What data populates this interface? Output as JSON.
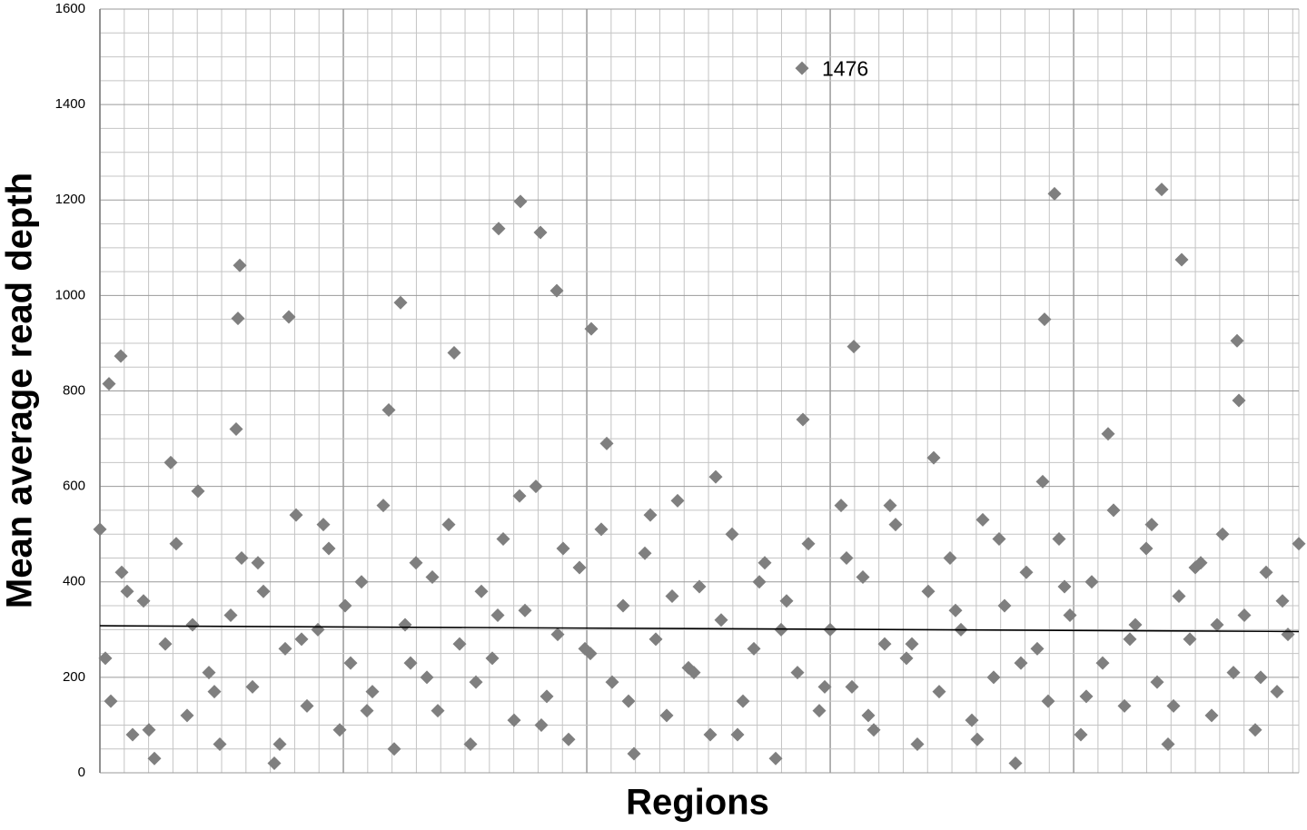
{
  "chart_data": {
    "type": "scatter",
    "y_label": "Mean average read depth",
    "x_label": "Regions",
    "ylim": [
      0,
      1600
    ],
    "yticks": [
      0,
      200,
      400,
      600,
      800,
      1000,
      1200,
      1400,
      1600
    ],
    "xlim": [
      0,
      1320
    ],
    "grid": true,
    "color": "#7f7f7f",
    "x": [
      0,
      12,
      24,
      36,
      48,
      60,
      72,
      84,
      96,
      108,
      120,
      132,
      144,
      156,
      168,
      180,
      192,
      204,
      216,
      228,
      240,
      252,
      264,
      276,
      288,
      300,
      312,
      324,
      336,
      348,
      360,
      372,
      384,
      396,
      408,
      420,
      432,
      444,
      456,
      468,
      480,
      492,
      504,
      516,
      528,
      540,
      552,
      564,
      576,
      588,
      600,
      612,
      624,
      636,
      648,
      660,
      672,
      684,
      696,
      708,
      720,
      732,
      744,
      756,
      768,
      780,
      792,
      804,
      816,
      828,
      840,
      852,
      864,
      876,
      888,
      900,
      912,
      924,
      936,
      948,
      960,
      972,
      984,
      996,
      1008,
      1020,
      1032,
      1044,
      1056,
      1068,
      1080,
      1092,
      1104,
      1116,
      1128,
      1140,
      1152,
      1164,
      1176,
      1188,
      1200,
      1212,
      1224,
      1236,
      1248,
      1260,
      1272,
      1284,
      1296,
      1308,
      1320,
      6,
      30,
      54,
      78,
      102,
      126,
      150,
      174,
      198,
      222,
      246,
      270,
      294,
      318,
      342,
      366,
      390,
      414,
      438,
      462,
      486,
      510,
      534,
      558,
      582,
      606,
      630,
      654,
      678,
      702,
      726,
      750,
      774,
      798,
      822,
      846,
      870,
      894,
      918,
      942,
      966,
      990,
      1014,
      1038,
      1062,
      1086,
      1110,
      1134,
      1158,
      1182,
      1206,
      1230,
      1254,
      1278,
      1302,
      154,
      439,
      463,
      485,
      503,
      331,
      1051,
      1169,
      1191,
      1040,
      152,
      208,
      1252,
      830,
      541,
      23,
      10
    ],
    "values": [
      510,
      150,
      420,
      80,
      360,
      30,
      270,
      480,
      120,
      590,
      210,
      60,
      330,
      450,
      180,
      380,
      20,
      260,
      540,
      140,
      300,
      470,
      90,
      230,
      400,
      170,
      560,
      50,
      310,
      440,
      200,
      130,
      520,
      270,
      60,
      380,
      240,
      490,
      110,
      340,
      600,
      160,
      290,
      70,
      430,
      250,
      510,
      190,
      350,
      40,
      460,
      280,
      120,
      570,
      220,
      390,
      80,
      320,
      500,
      150,
      260,
      440,
      30,
      360,
      210,
      480,
      130,
      300,
      560,
      180,
      410,
      90,
      270,
      520,
      240,
      60,
      380,
      170,
      450,
      300,
      110,
      530,
      200,
      350,
      20,
      420,
      260,
      150,
      490,
      330,
      80,
      400,
      230,
      550,
      140,
      310,
      470,
      190,
      60,
      370,
      280,
      440,
      120,
      500,
      210,
      330,
      90,
      420,
      170,
      290,
      480,
      240,
      380,
      90,
      650,
      310,
      170,
      720,
      440,
      60,
      280,
      520,
      350,
      130,
      760,
      230,
      410,
      880,
      190,
      330,
      580,
      100,
      470,
      260,
      690,
      150,
      540,
      370,
      210,
      620,
      80,
      400,
      300,
      740,
      180,
      450,
      120,
      560,
      270,
      660,
      340,
      70,
      490,
      230,
      610,
      390,
      160,
      710,
      280,
      520,
      140,
      430,
      310,
      780,
      200,
      360,
      1063,
      1140,
      1197,
      1132,
      1010,
      985,
      1213,
      1222,
      1075,
      950,
      952,
      955,
      905,
      893,
      930,
      873,
      815
    ],
    "highlight": {
      "x": 773,
      "y": 1476
    },
    "trendline": [
      308,
      296
    ]
  }
}
